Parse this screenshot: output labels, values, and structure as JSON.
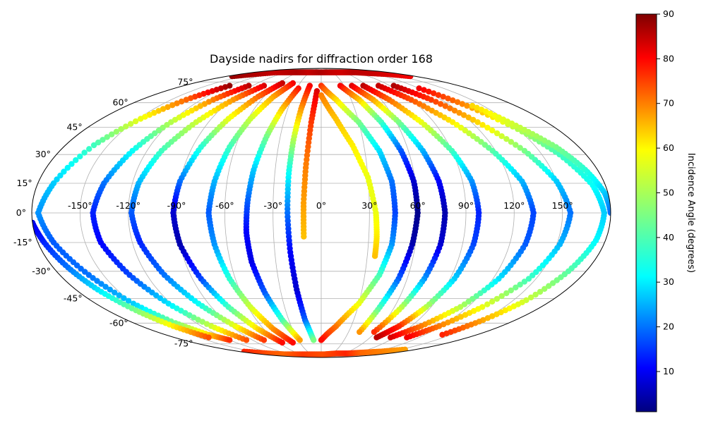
{
  "chart_data": {
    "type": "scatter",
    "projection": "mollweide",
    "title": "Dayside nadirs for diffraction order 168",
    "x_ticks": [
      "-150°",
      "-120°",
      "-90°",
      "-60°",
      "-30°",
      "0°",
      "30°",
      "60°",
      "90°",
      "120°",
      "150°"
    ],
    "x_tick_values": [
      -150,
      -120,
      -90,
      -60,
      -30,
      0,
      30,
      60,
      90,
      120,
      150
    ],
    "y_ticks": [
      "-75°",
      "-60°",
      "-45°",
      "-30°",
      "-15°",
      "0°",
      "15°",
      "30°",
      "45°",
      "60°",
      "75°"
    ],
    "y_tick_values": [
      -75,
      -60,
      -45,
      -30,
      -15,
      0,
      15,
      30,
      45,
      60,
      75
    ],
    "xlim": [
      -180,
      180
    ],
    "ylim": [
      -90,
      90
    ],
    "grid": true,
    "colormap": "jet",
    "colorbar": {
      "label": "Incidence Angle (degrees)",
      "range": [
        1,
        90
      ],
      "ticks": [
        "10",
        "20",
        "30",
        "40",
        "50",
        "60",
        "70",
        "80",
        "90"
      ],
      "tick_values": [
        10,
        20,
        30,
        40,
        50,
        60,
        70,
        80,
        90
      ]
    },
    "series": [
      {
        "lon": [
          -120,
          -135,
          -148,
          -160,
          -170,
          -176,
          -170,
          -160,
          -150,
          -140,
          -130,
          -120
        ],
        "lat": [
          72,
          62,
          50,
          35,
          15,
          0,
          -15,
          -32,
          -48,
          -60,
          -68,
          -72
        ],
        "incidence": [
          88,
          70,
          55,
          40,
          30,
          25,
          20,
          22,
          30,
          45,
          60,
          75
        ]
      },
      {
        "lon": [
          -95,
          -108,
          -120,
          -130,
          -138,
          -142,
          -140,
          -132,
          -122,
          -110,
          -98
        ],
        "lat": [
          72,
          62,
          48,
          32,
          15,
          0,
          -15,
          -32,
          -48,
          -62,
          -72
        ],
        "incidence": [
          85,
          68,
          50,
          35,
          22,
          15,
          12,
          18,
          32,
          52,
          72
        ]
      },
      {
        "lon": [
          -75,
          -88,
          -100,
          -110,
          -116,
          -118,
          -115,
          -108,
          -98,
          -86,
          -75
        ],
        "lat": [
          72,
          62,
          48,
          32,
          15,
          0,
          -15,
          -32,
          -48,
          -62,
          -72
        ],
        "incidence": [
          82,
          66,
          52,
          40,
          28,
          20,
          15,
          22,
          35,
          55,
          74
        ]
      },
      {
        "lon": [
          -55,
          -66,
          -76,
          -84,
          -90,
          -92,
          -90,
          -84,
          -76,
          -66,
          -55
        ],
        "lat": [
          74,
          64,
          50,
          34,
          16,
          0,
          -16,
          -34,
          -50,
          -64,
          -74
        ],
        "incidence": [
          84,
          70,
          55,
          38,
          22,
          8,
          5,
          18,
          40,
          60,
          78
        ]
      },
      {
        "lon": [
          -40,
          -50,
          -58,
          -64,
          -68,
          -70,
          -68,
          -64,
          -58,
          -50,
          -40
        ],
        "lat": [
          74,
          64,
          50,
          34,
          16,
          0,
          -16,
          -34,
          -50,
          -64,
          -74
        ],
        "incidence": [
          80,
          65,
          52,
          40,
          28,
          20,
          25,
          38,
          52,
          66,
          78
        ]
      },
      {
        "lon": [
          -28,
          -35,
          -40,
          -44,
          -46,
          -47,
          -46,
          -42,
          -36,
          -28
        ],
        "lat": [
          70,
          56,
          40,
          22,
          5,
          -10,
          -25,
          -42,
          -58,
          -72
        ],
        "incidence": [
          78,
          62,
          45,
          30,
          20,
          12,
          10,
          20,
          40,
          65
        ]
      },
      {
        "lon": [
          -15,
          -18,
          -20,
          -21,
          -21,
          -20,
          -18,
          -15,
          -10
        ],
        "lat": [
          72,
          56,
          38,
          20,
          0,
          -20,
          -40,
          -58,
          -72
        ],
        "incidence": [
          80,
          66,
          50,
          35,
          22,
          12,
          8,
          20,
          45
        ]
      },
      {
        "lon": [
          -5,
          -8,
          -10,
          -11,
          -11
        ],
        "lat": [
          68,
          48,
          25,
          5,
          -12
        ],
        "incidence": [
          82,
          74,
          68,
          65,
          62
        ]
      },
      {
        "lon": [
          0,
          12,
          22,
          30,
          34,
          35,
          35
        ],
        "lat": [
          65,
          50,
          35,
          18,
          0,
          -12,
          -22
        ],
        "incidence": [
          68,
          62,
          58,
          55,
          55,
          58,
          62
        ]
      },
      {
        "lon": [
          0,
          15,
          30,
          40,
          45,
          46,
          45,
          40,
          30,
          15,
          0
        ],
        "lat": [
          72,
          62,
          48,
          32,
          16,
          0,
          -16,
          -32,
          -48,
          -62,
          -72
        ],
        "incidence": [
          75,
          60,
          45,
          32,
          22,
          18,
          25,
          40,
          55,
          68,
          78
        ]
      },
      {
        "lon": [
          25,
          38,
          48,
          55,
          59,
          60,
          58,
          54,
          48,
          42
        ],
        "lat": [
          72,
          62,
          48,
          32,
          16,
          0,
          -16,
          -34,
          -50,
          -66
        ],
        "incidence": [
          80,
          62,
          40,
          20,
          8,
          2,
          5,
          20,
          40,
          66
        ]
      },
      {
        "lon": [
          40,
          52,
          62,
          70,
          75,
          77,
          76,
          72,
          66,
          58
        ],
        "lat": [
          72,
          62,
          48,
          32,
          16,
          0,
          -16,
          -34,
          -50,
          -66
        ],
        "incidence": [
          82,
          65,
          45,
          28,
          12,
          5,
          8,
          25,
          50,
          75
        ]
      },
      {
        "lon": [
          55,
          68,
          80,
          90,
          96,
          98,
          97,
          93,
          86,
          78,
          68
        ],
        "lat": [
          72,
          62,
          48,
          32,
          16,
          0,
          -16,
          -34,
          -50,
          -62,
          -70
        ],
        "incidence": [
          85,
          70,
          55,
          40,
          25,
          15,
          18,
          30,
          50,
          75,
          85
        ]
      },
      {
        "lon": [
          75,
          90,
          105,
          118,
          128,
          132,
          130,
          124,
          114,
          100,
          85
        ],
        "lat": [
          72,
          62,
          48,
          32,
          16,
          0,
          -16,
          -34,
          -50,
          -62,
          -70
        ],
        "incidence": [
          84,
          72,
          58,
          42,
          28,
          18,
          20,
          32,
          50,
          68,
          82
        ]
      },
      {
        "lon": [
          95,
          110,
          125,
          140,
          150,
          155,
          152,
          145,
          132,
          118,
          105
        ],
        "lat": [
          72,
          62,
          48,
          32,
          16,
          0,
          -16,
          -34,
          -50,
          -62,
          -70
        ],
        "incidence": [
          86,
          74,
          60,
          45,
          30,
          22,
          28,
          40,
          55,
          68,
          80
        ]
      },
      {
        "lon": [
          120,
          135,
          150,
          162,
          172,
          176,
          174,
          168,
          160,
          150,
          140
        ],
        "lat": [
          70,
          58,
          44,
          30,
          14,
          0,
          -14,
          -30,
          -46,
          -58,
          -68
        ],
        "incidence": [
          80,
          66,
          50,
          40,
          35,
          30,
          34,
          42,
          52,
          64,
          76
        ]
      },
      {
        "lon": [
          140,
          152,
          164,
          172,
          178,
          180
        ],
        "lat": [
          58,
          46,
          34,
          22,
          10,
          0
        ],
        "incidence": [
          60,
          52,
          45,
          38,
          30,
          22
        ]
      },
      {
        "lon": [
          -180,
          -176,
          -170,
          -164,
          -156,
          -148,
          -138
        ],
        "lat": [
          -5,
          -15,
          -28,
          -40,
          -52,
          -62,
          -70
        ],
        "incidence": [
          10,
          15,
          22,
          32,
          45,
          58,
          72
        ]
      },
      {
        "lon": [
          -170,
          -150,
          -120,
          -90,
          -60,
          -30,
          0,
          30,
          60,
          90,
          120,
          150,
          170
        ],
        "lat": [
          80,
          82,
          84,
          84,
          84,
          84,
          84,
          84,
          84,
          84,
          83,
          82,
          80
        ],
        "incidence": [
          88,
          86,
          84,
          85,
          86,
          84,
          86,
          84,
          83,
          85,
          84,
          82,
          80
        ]
      },
      {
        "lon": [
          -170,
          -140,
          -110,
          -80,
          -50,
          -20,
          10,
          40,
          70,
          100,
          130,
          160
        ],
        "lat": [
          -82,
          -84,
          -85,
          -85,
          -85,
          -85,
          -85,
          -84,
          -84,
          -83,
          -82,
          -80
        ],
        "incidence": [
          76,
          72,
          70,
          72,
          74,
          73,
          72,
          74,
          76,
          70,
          68,
          65
        ]
      }
    ]
  }
}
